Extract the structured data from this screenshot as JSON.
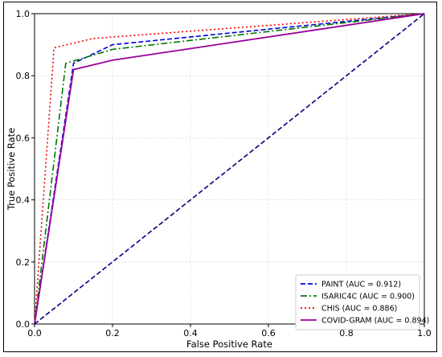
{
  "chart_data": {
    "type": "line",
    "title": "",
    "xlabel": "False Positive Rate",
    "ylabel": "True Positive Rate",
    "xlim": [
      0,
      1
    ],
    "ylim": [
      0,
      1
    ],
    "xticks": [
      "0.0",
      "0.2",
      "0.4",
      "0.6",
      "0.8",
      "1.0"
    ],
    "yticks": [
      "0.0",
      "0.2",
      "0.4",
      "0.6",
      "0.8",
      "1.0"
    ],
    "grid": true,
    "legend_position": "lower-right",
    "series": [
      {
        "name": "PAINT (AUC = 0.912)",
        "color": "#0000dd",
        "style": "dashed",
        "x": [
          0,
          0.1,
          0.2,
          1
        ],
        "y": [
          0,
          0.84,
          0.9,
          1
        ]
      },
      {
        "name": "ISARIC4C (AUC = 0.900)",
        "color": "#007700",
        "style": "dashdot",
        "x": [
          0,
          0.08,
          0.2,
          1
        ],
        "y": [
          0,
          0.84,
          0.885,
          1
        ]
      },
      {
        "name": "CHIS (AUC = 0.886)",
        "color": "#ee0000",
        "style": "dotted",
        "x": [
          0,
          0.05,
          0.15,
          1
        ],
        "y": [
          0,
          0.89,
          0.92,
          1
        ]
      },
      {
        "name": "COVID-GRAM (AUC = 0.894)",
        "color": "#990099",
        "style": "solid",
        "x": [
          0,
          0.1,
          0.2,
          1
        ],
        "y": [
          0,
          0.82,
          0.85,
          1
        ]
      },
      {
        "name": "",
        "color": "#000080",
        "style": "dashed",
        "x": [
          0,
          1
        ],
        "y": [
          0,
          1
        ]
      }
    ]
  }
}
